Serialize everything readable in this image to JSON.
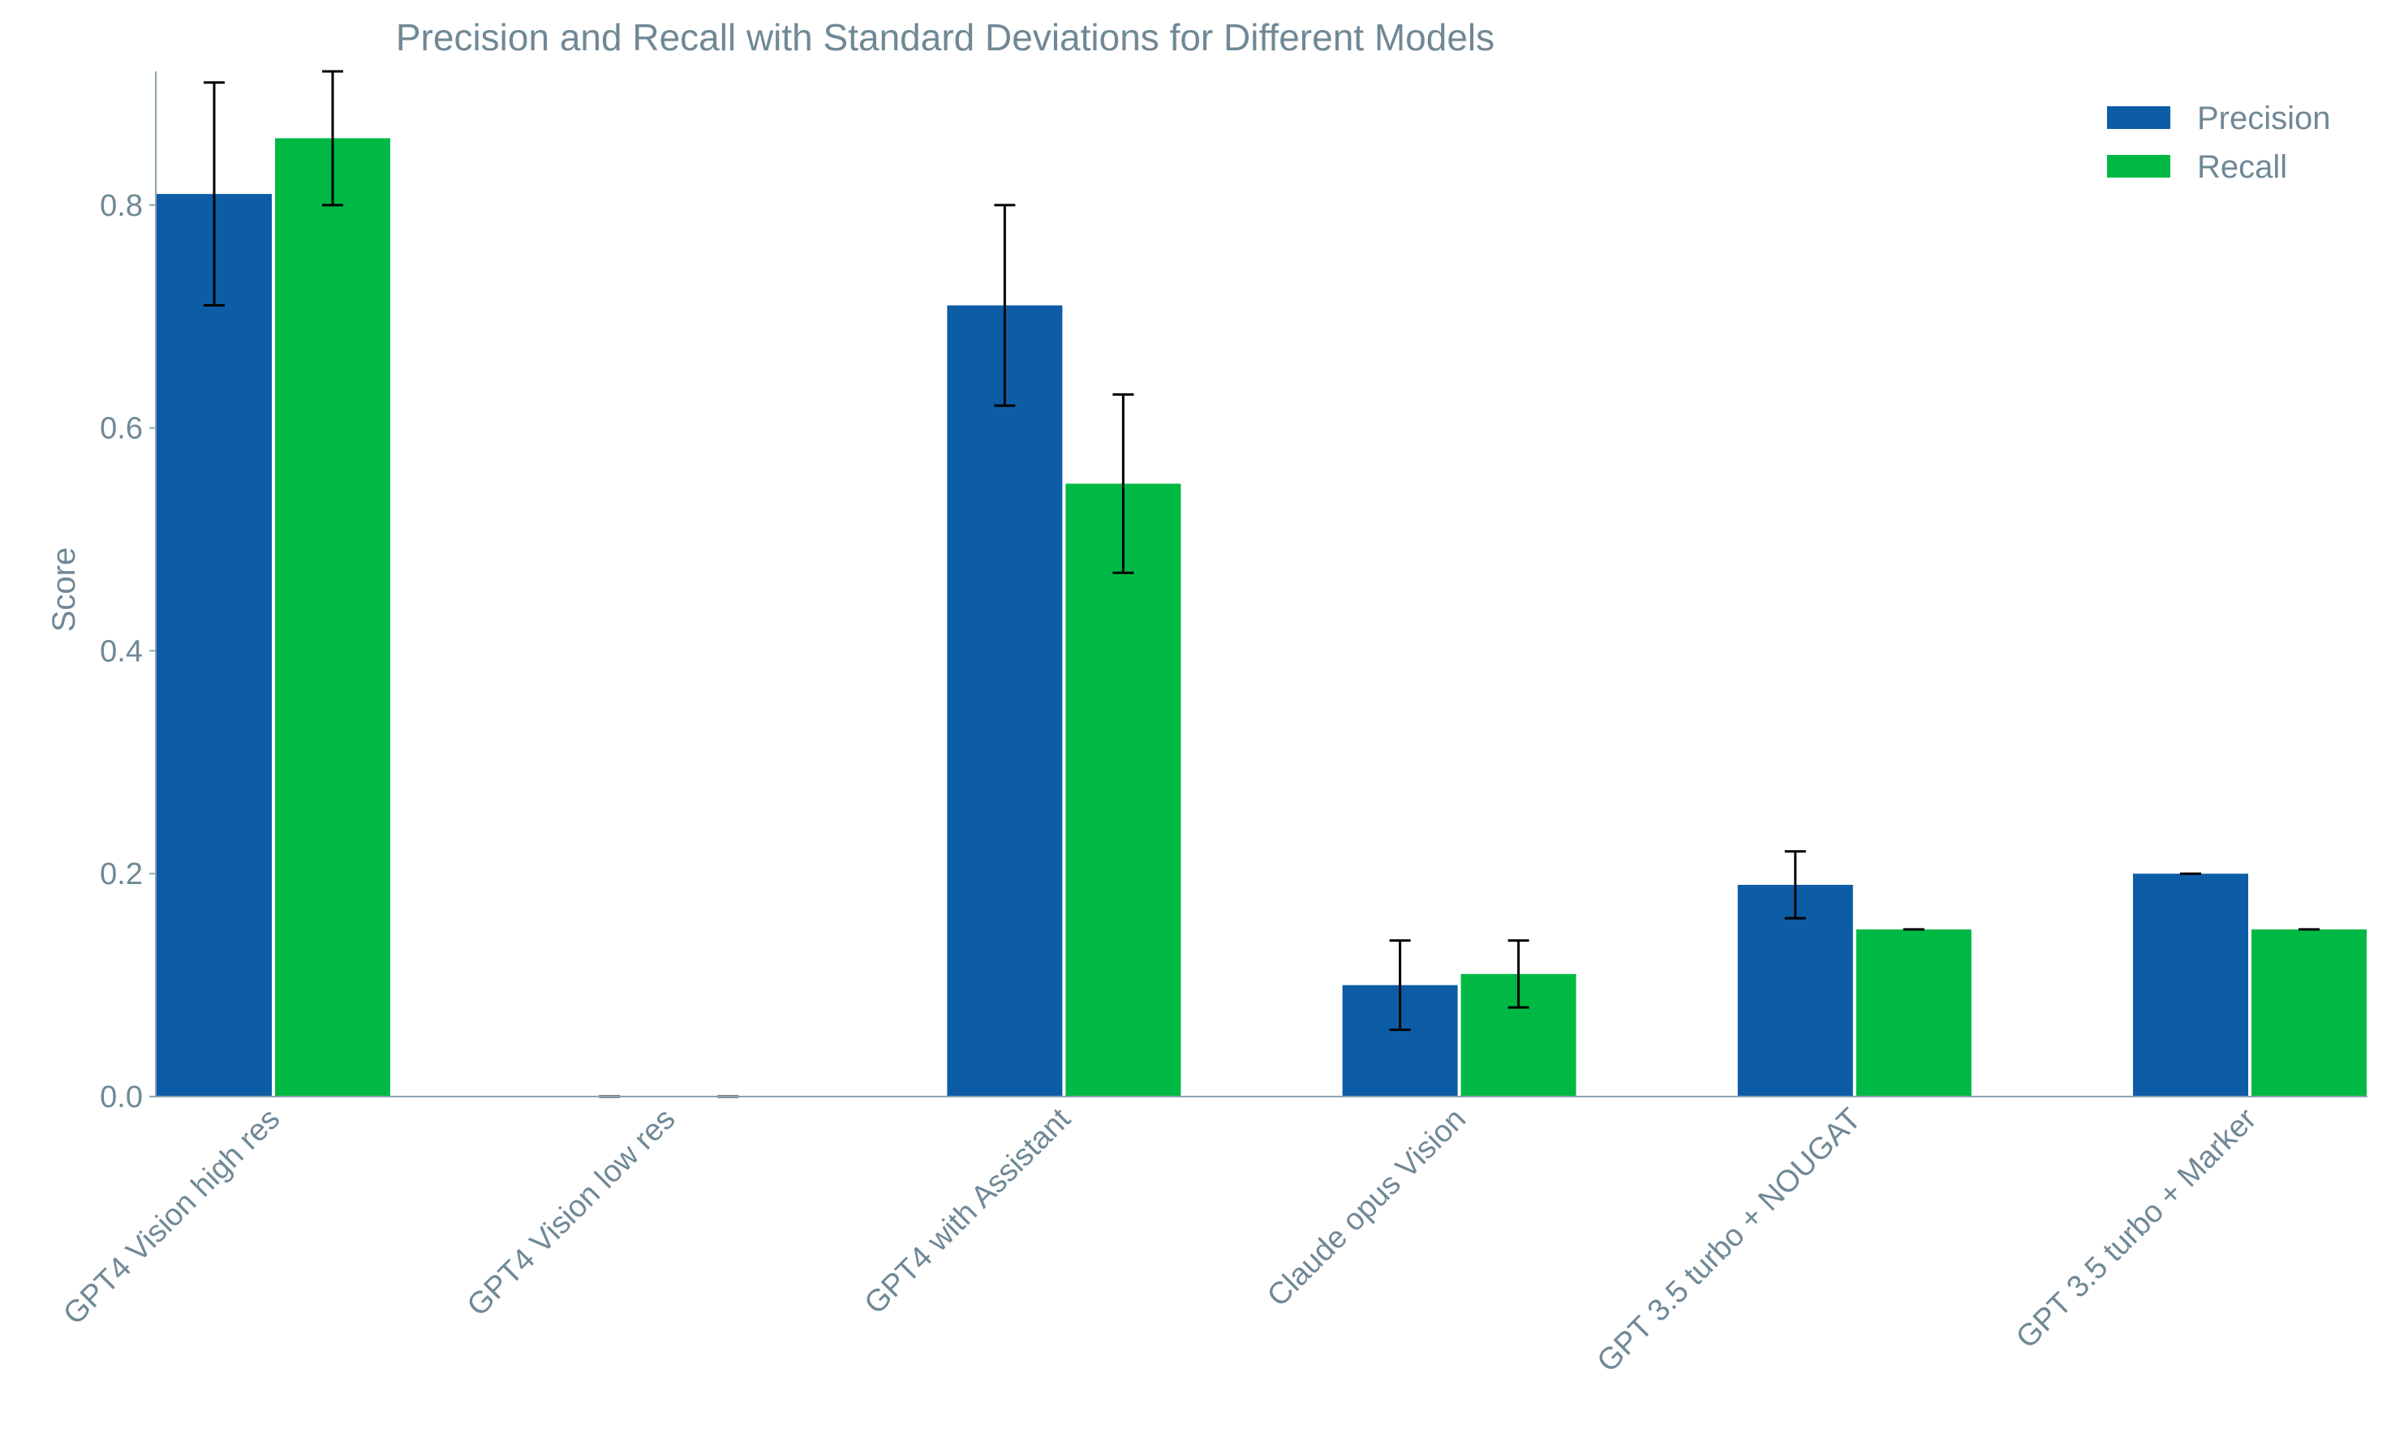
{
  "chart_data": {
    "type": "bar",
    "title": "Precision and Recall with Standard Deviations for Different Models",
    "xlabel": "",
    "ylabel": "Score",
    "ylim": [
      0,
      0.92
    ],
    "yticks": [
      0.0,
      0.2,
      0.4,
      0.6,
      0.8
    ],
    "ytick_labels": [
      "0.0",
      "0.2",
      "0.4",
      "0.6",
      "0.8"
    ],
    "grid": false,
    "legend_position": "top-right",
    "categories": [
      "GPT4 Vision high res",
      "GPT4 Vision low res",
      "GPT4 with Assistant",
      "Claude opus Vision",
      "GPT 3.5 turbo + NOUGAT",
      "GPT 3.5 turbo + Marker"
    ],
    "series": [
      {
        "name": "Precision",
        "color": "#0d5ca6",
        "values": [
          0.81,
          0.0,
          0.71,
          0.1,
          0.19,
          0.2
        ],
        "errors": [
          0.1,
          0.0,
          0.09,
          0.04,
          0.03,
          0.0
        ]
      },
      {
        "name": "Recall",
        "color": "#00b944",
        "values": [
          0.86,
          0.0,
          0.55,
          0.11,
          0.15,
          0.15
        ],
        "errors": [
          0.06,
          0.0,
          0.08,
          0.03,
          0.0,
          0.0
        ]
      }
    ],
    "colors": {
      "text": "#708896",
      "axis": "#8fa3b0",
      "error_bar": "#000000"
    }
  }
}
